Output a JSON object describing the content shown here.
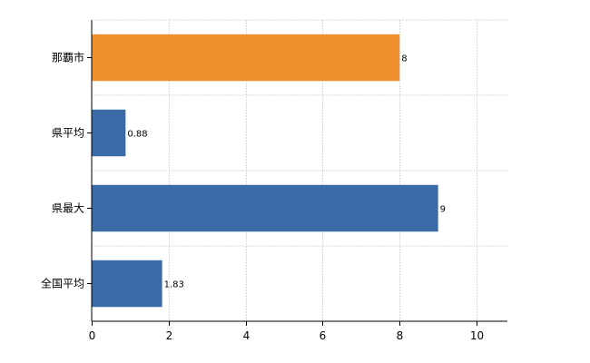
{
  "chart_data": {
    "type": "bar",
    "orientation": "horizontal",
    "categories": [
      "那覇市",
      "県平均",
      "県最大",
      "全国平均"
    ],
    "values": [
      8,
      0.88,
      9,
      1.83
    ],
    "data_labels": [
      "8",
      "0.88",
      "9",
      "1.83"
    ],
    "bar_colors": [
      "#f08f2e",
      "#3b6aa8",
      "#3b6aa8",
      "#3b6aa8"
    ],
    "xlim": [
      0,
      10.8
    ],
    "xticks": [
      0,
      2,
      4,
      6,
      8,
      10
    ],
    "grid": true,
    "legend": "none"
  }
}
